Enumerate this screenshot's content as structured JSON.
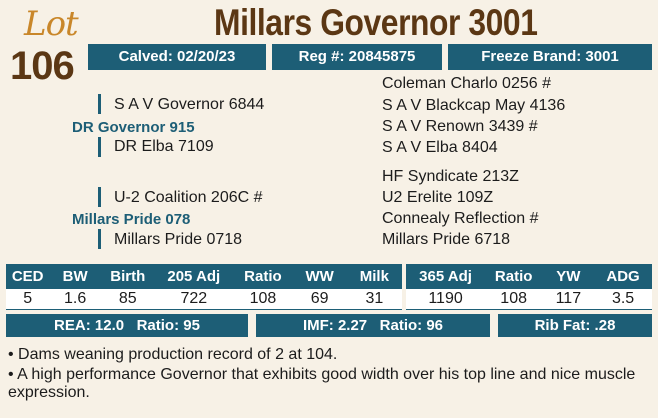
{
  "lot": {
    "word": "Lot",
    "number": "106"
  },
  "title": "Millars Governor 3001",
  "info": {
    "calved": "Calved: 02/20/23",
    "reg": "Reg #: 20845875",
    "freeze_brand": "Freeze Brand: 3001"
  },
  "pedigree": {
    "sire_sire": "S A V Governor 6844",
    "sire": "DR Governor 915",
    "sire_dam": "DR Elba 7109",
    "sss": "Coleman Charlo 0256 #",
    "ssd": "S A V Blackcap May 4136",
    "sds": "S A V Renown 3439 #",
    "sdd": "S A V Elba 8404",
    "dam_sire": "U-2 Coalition 206C #",
    "dam": "Millars Pride 078",
    "dam_dam": "Millars Pride 0718",
    "dss": "HF Syndicate 213Z",
    "dsd": "U2 Erelite 109Z",
    "dds": "Connealy Reflection #",
    "ddd": "Millars Pride 6718"
  },
  "epd": {
    "headers": [
      "CED",
      "BW",
      "Birth",
      "205 Adj",
      "Ratio",
      "WW",
      "Milk",
      "365 Adj",
      "Ratio",
      "YW",
      "ADG"
    ],
    "values": [
      "5",
      "1.6",
      "85",
      "722",
      "108",
      "69",
      "31",
      "1190",
      "108",
      "117",
      "3.5"
    ]
  },
  "carcass": {
    "rea": "REA: 12.0",
    "rea_ratio": "Ratio: 95",
    "imf": "IMF: 2.27",
    "imf_ratio": "Ratio: 96",
    "rib_fat": "Rib Fat: .28"
  },
  "notes": [
    "• Dams weaning production record of 2 at 104.",
    "• A high performance Governor that exhibits good width over his top line and nice muscle expression."
  ]
}
